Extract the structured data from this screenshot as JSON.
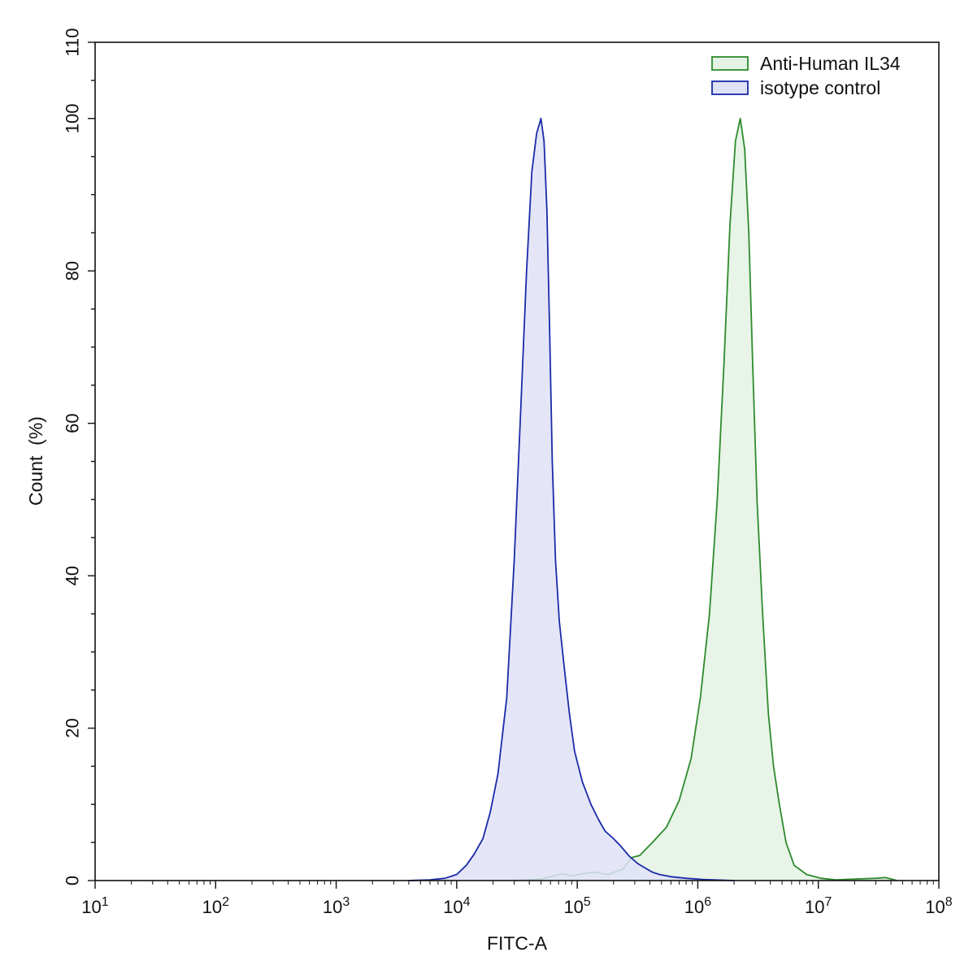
{
  "chart_data": {
    "type": "area",
    "xlabel": "FITC-A",
    "ylabel": "Count  (%)",
    "x_scale": "log10",
    "xlim": [
      10,
      100000000
    ],
    "ylim": [
      0,
      110
    ],
    "x_ticks": [
      {
        "value": 10,
        "base": "10",
        "exp": "1"
      },
      {
        "value": 100,
        "base": "10",
        "exp": "2"
      },
      {
        "value": 1000,
        "base": "10",
        "exp": "3"
      },
      {
        "value": 10000,
        "base": "10",
        "exp": "4"
      },
      {
        "value": 100000,
        "base": "10",
        "exp": "5"
      },
      {
        "value": 1000000,
        "base": "10",
        "exp": "6"
      },
      {
        "value": 10000000,
        "base": "10",
        "exp": "7"
      },
      {
        "value": 100000000,
        "base": "10",
        "exp": "8"
      }
    ],
    "y_ticks": [
      {
        "value": 0,
        "label": "0"
      },
      {
        "value": 20,
        "label": "20"
      },
      {
        "value": 40,
        "label": "40"
      },
      {
        "value": 60,
        "label": "60"
      },
      {
        "value": 80,
        "label": "80"
      },
      {
        "value": 100,
        "label": "100"
      },
      {
        "value": 110,
        "label": "110"
      }
    ],
    "legend_position": "top-right",
    "grid": false,
    "series": [
      {
        "name": "Anti-Human IL34",
        "stroke": "#2e8b2e",
        "fill": "#e3f2e3",
        "x": [
          30000,
          50000,
          60000,
          75000,
          90000,
          110000,
          140000,
          180000,
          240000,
          280000,
          330000,
          420000,
          550000,
          700000,
          880000,
          1050000,
          1250000,
          1450000,
          1650000,
          1850000,
          2050000,
          2250000,
          2450000,
          2650000,
          2850000,
          3100000,
          3450000,
          3850000,
          4250000,
          4750000,
          5400000,
          6300000,
          8000000,
          10500000,
          14000000,
          20000000,
          30000000,
          36000000,
          45000000
        ],
        "y": [
          0,
          0.2,
          0.5,
          0.9,
          0.6,
          0.9,
          1.1,
          0.8,
          1.5,
          3.0,
          3.3,
          5.0,
          7.0,
          10.5,
          16,
          24,
          35,
          50,
          68,
          86,
          97,
          100,
          96,
          85,
          68,
          50,
          35,
          22,
          15,
          10,
          5.0,
          2.0,
          0.8,
          0.3,
          0.1,
          0.2,
          0.3,
          0.4,
          0
        ]
      },
      {
        "name": "isotype control",
        "stroke": "#1a2aa8",
        "fill": "#dfe2f7",
        "x": [
          4000,
          6000,
          8000,
          10000,
          12000,
          14000,
          16500,
          19000,
          22000,
          26000,
          30000,
          34000,
          38000,
          42000,
          46000,
          50000,
          53000,
          56000,
          59000,
          62000,
          66000,
          71000,
          78000,
          86000,
          95000,
          110000,
          130000,
          150000,
          170000,
          200000,
          230000,
          270000,
          320000,
          370000,
          420000,
          480000,
          600000,
          800000,
          1100000,
          1600000,
          2000000
        ],
        "y": [
          0,
          0.1,
          0.3,
          0.8,
          2.0,
          3.5,
          5.5,
          9,
          14,
          24,
          42,
          62,
          80,
          93,
          98,
          100,
          97,
          88,
          72,
          55,
          42,
          34,
          28,
          22,
          17,
          13,
          10,
          8,
          6.5,
          5.5,
          4.5,
          3.2,
          2.2,
          1.6,
          1.1,
          0.8,
          0.5,
          0.3,
          0.15,
          0.05,
          0
        ]
      }
    ]
  }
}
